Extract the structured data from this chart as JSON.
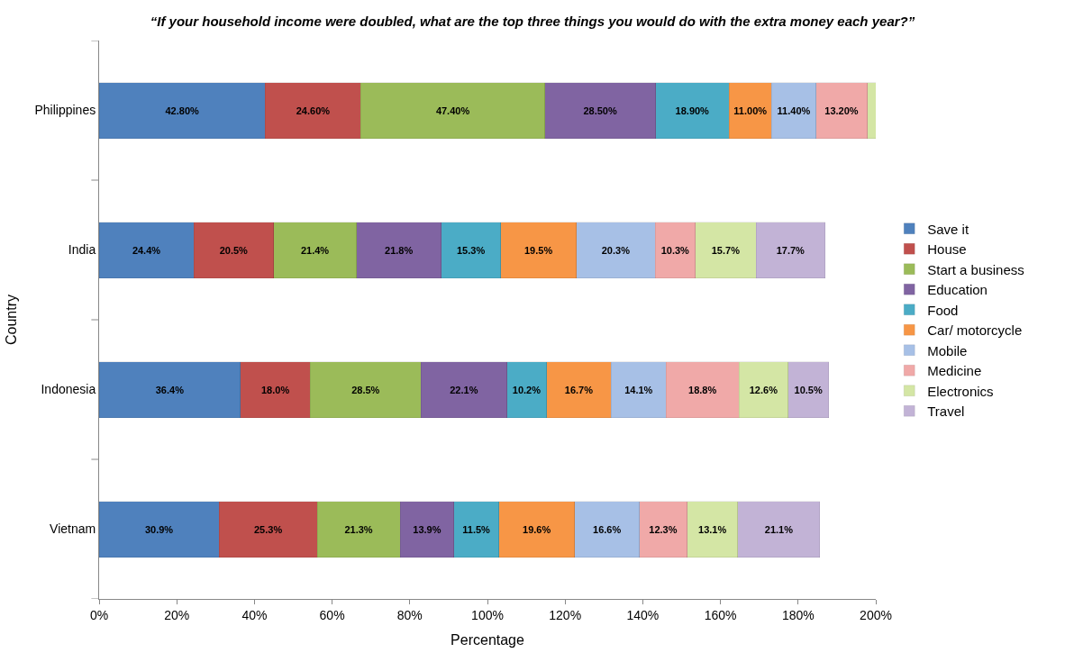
{
  "chart_data": {
    "type": "bar",
    "orientation": "horizontal",
    "stacked": true,
    "title": "“If your household income were doubled, what are the top three things you would do with the extra money each year?”",
    "xlabel": "Percentage",
    "ylabel": "Country",
    "categories": [
      "Philippines",
      "India",
      "Indonesia",
      "Vietnam"
    ],
    "xlim": [
      0,
      200
    ],
    "xticks": [
      {
        "value": 0,
        "label": "0%"
      },
      {
        "value": 20,
        "label": "20%"
      },
      {
        "value": 40,
        "label": "40%"
      },
      {
        "value": 60,
        "label": "60%"
      },
      {
        "value": 80,
        "label": "80%"
      },
      {
        "value": 100,
        "label": "100%"
      },
      {
        "value": 120,
        "label": "120%"
      },
      {
        "value": 140,
        "label": "140%"
      },
      {
        "value": 160,
        "label": "160%"
      },
      {
        "value": 180,
        "label": "180%"
      },
      {
        "value": 200,
        "label": "200%"
      }
    ],
    "legend": "right",
    "series": [
      {
        "name": "Save it",
        "color": "#4f81bd",
        "values": [
          42.8,
          24.4,
          36.4,
          30.9
        ],
        "value_labels": [
          "42.80%",
          "24.4%",
          "36.4%",
          "30.9%"
        ]
      },
      {
        "name": "House",
        "color": "#c0504d",
        "values": [
          24.6,
          20.5,
          18.0,
          25.3
        ],
        "value_labels": [
          "24.60%",
          "20.5%",
          "18.0%",
          "25.3%"
        ]
      },
      {
        "name": "Start a business",
        "color": "#9bbb59",
        "values": [
          47.4,
          21.4,
          28.5,
          21.3
        ],
        "value_labels": [
          "47.40%",
          "21.4%",
          "28.5%",
          "21.3%"
        ]
      },
      {
        "name": "Education",
        "color": "#8064a2",
        "values": [
          28.5,
          21.8,
          22.1,
          13.9
        ],
        "value_labels": [
          "28.50%",
          "21.8%",
          "22.1%",
          "13.9%"
        ]
      },
      {
        "name": "Food",
        "color": "#4bacc6",
        "values": [
          18.9,
          15.3,
          10.2,
          11.5
        ],
        "value_labels": [
          "18.90%",
          "15.3%",
          "10.2%",
          "11.5%"
        ]
      },
      {
        "name": "Car/ motorcycle",
        "color": "#f79646",
        "values": [
          11.0,
          19.5,
          16.7,
          19.6
        ],
        "value_labels": [
          "11.00%",
          "19.5%",
          "16.7%",
          "19.6%"
        ]
      },
      {
        "name": "Mobile",
        "color": "#a7c0e6",
        "values": [
          11.4,
          20.3,
          14.1,
          16.6
        ],
        "value_labels": [
          "11.40%",
          "20.3%",
          "14.1%",
          "16.6%"
        ]
      },
      {
        "name": "Medicine",
        "color": "#f0a9a8",
        "values": [
          13.2,
          10.3,
          18.8,
          12.3
        ],
        "value_labels": [
          "13.20%",
          "10.3%",
          "18.8%",
          "12.3%"
        ]
      },
      {
        "name": "Electronics",
        "color": "#d4e6a5",
        "values": [
          2.2,
          15.7,
          12.6,
          13.1
        ],
        "value_labels": [
          null,
          "15.7%",
          "12.6%",
          "13.1%"
        ]
      },
      {
        "name": "Travel",
        "color": "#c2b3d6",
        "values": [
          null,
          17.7,
          10.5,
          21.1
        ],
        "value_labels": [
          null,
          "17.7%",
          "10.5%",
          "21.1%"
        ]
      }
    ]
  }
}
